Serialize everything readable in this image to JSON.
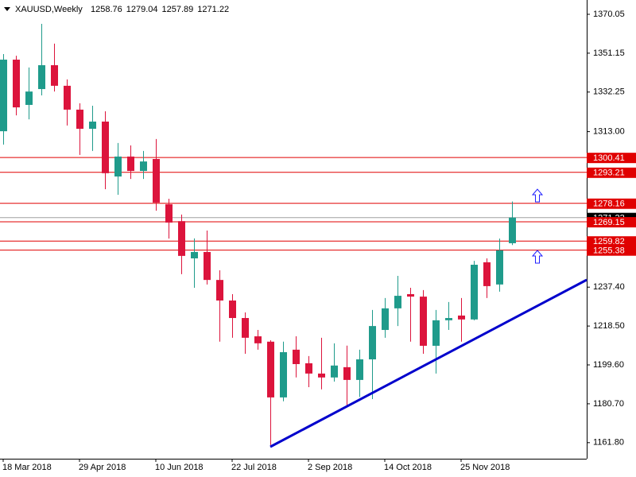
{
  "chart_data": {
    "type": "candlestick",
    "title": "XAUUSD,Weekly",
    "categories": [
      "18 Mar 2018",
      null,
      null,
      null,
      null,
      null,
      "29 Apr 2018",
      null,
      null,
      null,
      null,
      null,
      "10 Jun 2018",
      null,
      null,
      null,
      null,
      null,
      "22 Jul 2018",
      null,
      null,
      null,
      null,
      null,
      "2 Sep 2018",
      null,
      null,
      null,
      null,
      null,
      "14 Oct 2018",
      null,
      null,
      null,
      null,
      null,
      "25 Nov 2018",
      null,
      null,
      null,
      null
    ],
    "open": [
      1313.2,
      1348.0,
      1326.0,
      1333.7,
      1345.3,
      1335.3,
      1323.7,
      1314.4,
      1317.9,
      1291.2,
      1300.9,
      1293.9,
      1299.7,
      1277.7,
      1269.5,
      1251.4,
      1254.5,
      1240.9,
      1230.9,
      1222.4,
      1213.5,
      1210.9,
      1183.8,
      1207.0,
      1200.4,
      1195.4,
      1193.5,
      1198.5,
      1192.3,
      1202.3,
      1216.6,
      1227.1,
      1234.0,
      1232.8,
      1208.9,
      1221.3,
      1223.6,
      1221.7,
      1249.5,
      1238.7,
      1258.76
    ],
    "high": [
      1350.7,
      1349.9,
      1344.2,
      1365.4,
      1355.8,
      1338.4,
      1326.8,
      1325.6,
      1322.9,
      1307.5,
      1306.3,
      1303.6,
      1309.4,
      1280.4,
      1272.7,
      1261.1,
      1264.9,
      1245.6,
      1234.0,
      1225.1,
      1216.6,
      1211.6,
      1210.9,
      1213.5,
      1203.9,
      1212.8,
      1210.1,
      1209.0,
      1207.0,
      1226.3,
      1232.1,
      1242.9,
      1237.1,
      1236.0,
      1226.3,
      1230.2,
      1232.1,
      1250.2,
      1251.4,
      1261.0,
      1279.04
    ],
    "low": [
      1306.7,
      1320.9,
      1319.0,
      1330.6,
      1332.5,
      1316.0,
      1301.7,
      1303.6,
      1285.0,
      1282.3,
      1290.0,
      1290.0,
      1274.6,
      1261.0,
      1243.7,
      1237.1,
      1238.7,
      1210.9,
      1212.8,
      1205.0,
      1207.0,
      1160.6,
      1181.9,
      1193.5,
      1188.8,
      1187.7,
      1191.5,
      1180.0,
      1184.0,
      1183.0,
      1212.8,
      1218.5,
      1210.9,
      1205.0,
      1195.4,
      1216.6,
      1210.9,
      1221.3,
      1232.1,
      1235.2,
      1257.89
    ],
    "close": [
      1348.0,
      1324.8,
      1332.5,
      1345.3,
      1335.3,
      1323.7,
      1314.4,
      1317.9,
      1292.8,
      1300.9,
      1293.9,
      1298.5,
      1278.5,
      1268.8,
      1252.6,
      1254.5,
      1240.9,
      1230.9,
      1222.4,
      1212.8,
      1210.1,
      1183.8,
      1205.8,
      1200.0,
      1195.4,
      1193.5,
      1199.3,
      1192.3,
      1202.3,
      1218.5,
      1227.1,
      1233.2,
      1232.8,
      1208.9,
      1221.3,
      1222.4,
      1221.7,
      1248.3,
      1237.9,
      1255.3,
      1271.22
    ],
    "up_color": "#1f9b8b",
    "down_color": "#dc143c",
    "ylim": [
      1154.0,
      1377.0
    ],
    "yticks": [
      1370.05,
      1351.15,
      1332.25,
      {
        "value": 1313.0,
        "label": "1313.00"
      },
      {
        "value": 1237.4,
        "label": "1237.40"
      },
      {
        "value": 1218.5,
        "label": "1218.50"
      },
      {
        "value": 1199.6,
        "label": "1199.60"
      },
      {
        "value": 1180.7,
        "label": "1180.70"
      },
      {
        "value": 1161.8,
        "label": "1161.80"
      }
    ],
    "levels": [
      1300.41,
      1293.21,
      1278.16,
      1269.15,
      1259.82,
      1255.38
    ],
    "level_color": "#e00000",
    "current_price": 1271.22
  }
}
